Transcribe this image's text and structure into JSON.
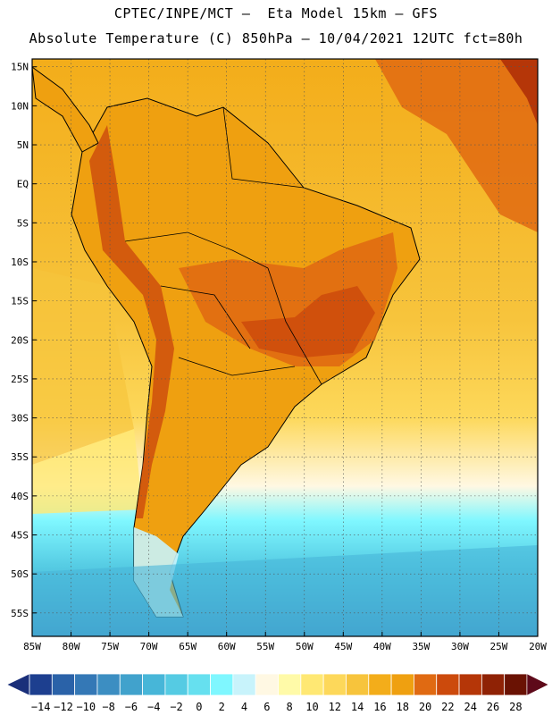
{
  "header": {
    "line1": "CPTEC/INPE/MCT –  Eta Model 15km – GFS",
    "line2": "Absolute Temperature (C) 850hPa – 10/04/2021 12UTC fct=80h"
  },
  "map": {
    "lon_range": [
      -85,
      -20
    ],
    "lat_range": [
      -58,
      16
    ],
    "lat_ticks": [
      "15N",
      "10N",
      "5N",
      "EQ",
      "5S",
      "10S",
      "15S",
      "20S",
      "25S",
      "30S",
      "35S",
      "40S",
      "45S",
      "50S",
      "55S"
    ],
    "lon_ticks": [
      "85W",
      "80W",
      "75W",
      "70W",
      "65W",
      "60W",
      "55W",
      "50W",
      "45W",
      "40W",
      "35W",
      "30W",
      "25W",
      "20W"
    ],
    "grid": true
  },
  "colorbar": {
    "labels": [
      "-14",
      "-12",
      "-10",
      "-8",
      "-6",
      "-4",
      "-2",
      "0",
      "2",
      "4",
      "6",
      "8",
      "10",
      "12",
      "14",
      "16",
      "18",
      "20",
      "22",
      "24",
      "26",
      "28"
    ],
    "colors": [
      "#1d3f8f",
      "#2a62a8",
      "#3478b6",
      "#3c8ec2",
      "#41a2cc",
      "#47b6d8",
      "#55cbe3",
      "#66e0ef",
      "#7ff7ff",
      "#c8f3fb",
      "#fff8e3",
      "#fffaa8",
      "#ffe873",
      "#fdd85a",
      "#f7c43c",
      "#f3ad1a",
      "#efa010",
      "#e06a12",
      "#cc4a0c",
      "#b53608",
      "#8f2205",
      "#6a1203"
    ]
  }
}
